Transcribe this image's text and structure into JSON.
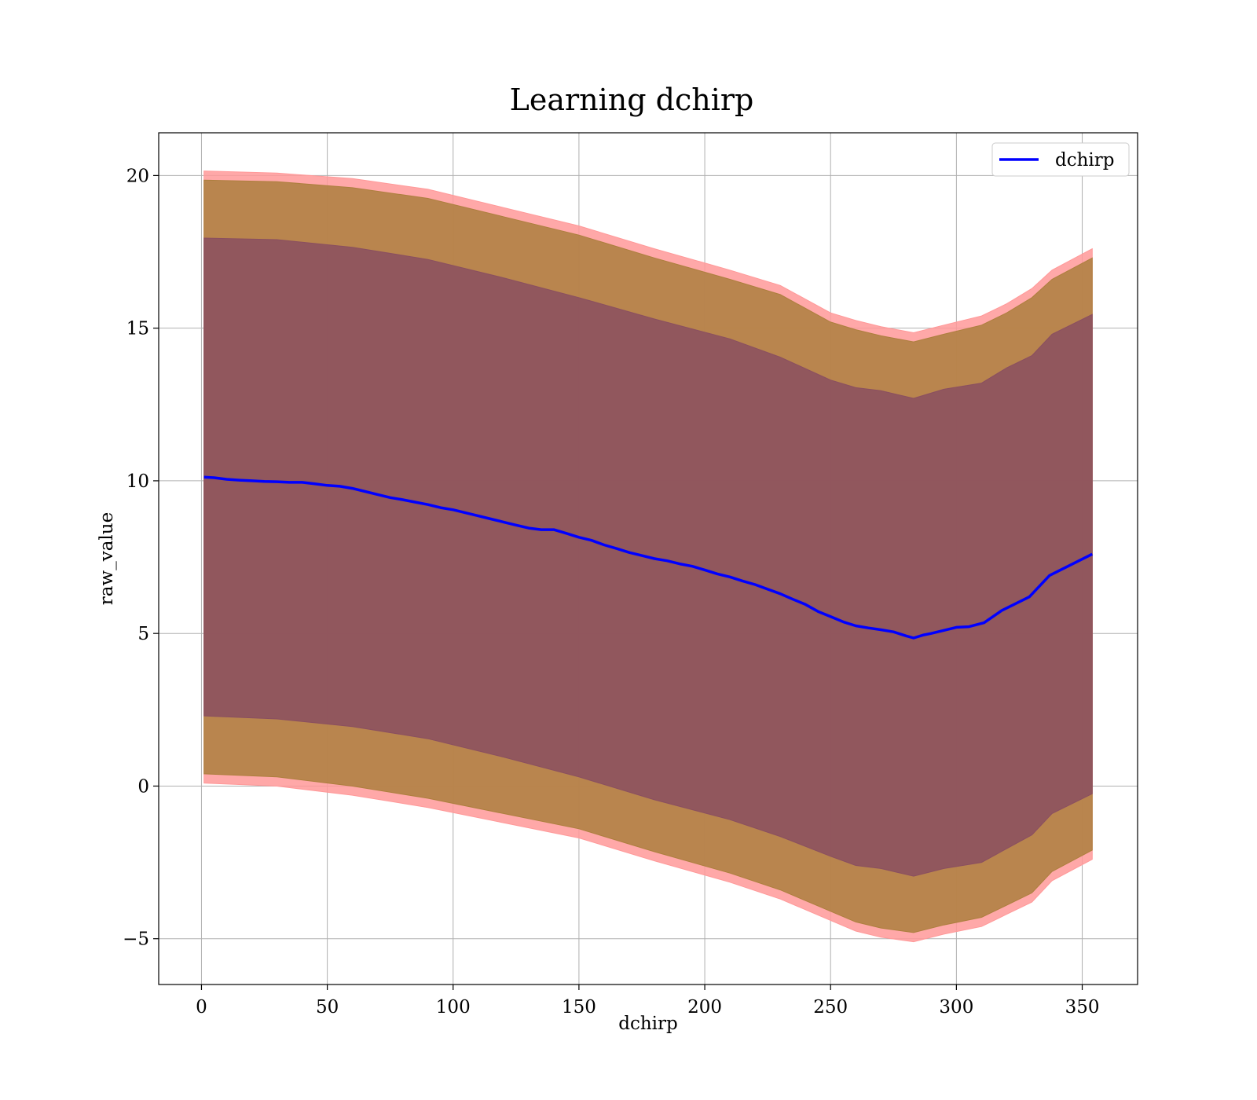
{
  "chart_data": {
    "type": "line",
    "title": "Learning dchirp",
    "xlabel": "dchirp",
    "ylabel": "raw_value",
    "xlim": [
      -17,
      372
    ],
    "ylim": [
      -6.5,
      21.4
    ],
    "x_ticks": [
      0,
      50,
      100,
      150,
      200,
      250,
      300,
      350
    ],
    "y_ticks": [
      -5,
      0,
      5,
      10,
      15,
      20
    ],
    "x_tick_labels": [
      "0",
      "50",
      "100",
      "150",
      "200",
      "250",
      "300",
      "350"
    ],
    "y_tick_labels": [
      "−5",
      "0",
      "5",
      "10",
      "15",
      "20"
    ],
    "grid": true,
    "legend_position": "top-right",
    "series": [
      {
        "name": "dchirp",
        "color": "#0000ff",
        "x": [
          1,
          5,
          10,
          15,
          20,
          25,
          30,
          35,
          40,
          45,
          50,
          55,
          60,
          65,
          70,
          75,
          80,
          85,
          90,
          95,
          100,
          105,
          110,
          115,
          120,
          125,
          130,
          135,
          140,
          145,
          150,
          155,
          160,
          165,
          170,
          175,
          180,
          185,
          190,
          195,
          200,
          205,
          210,
          215,
          220,
          225,
          230,
          235,
          240,
          245,
          250,
          255,
          260,
          265,
          270,
          275,
          280,
          283,
          287,
          290,
          295,
          300,
          305,
          311,
          318,
          329,
          337,
          354
        ],
        "values": [
          10.12,
          10.1,
          10.05,
          10.02,
          10.0,
          9.98,
          9.97,
          9.95,
          9.95,
          9.9,
          9.85,
          9.82,
          9.75,
          9.65,
          9.55,
          9.45,
          9.38,
          9.3,
          9.22,
          9.12,
          9.05,
          8.95,
          8.85,
          8.75,
          8.65,
          8.55,
          8.45,
          8.4,
          8.4,
          8.28,
          8.15,
          8.05,
          7.9,
          7.78,
          7.65,
          7.55,
          7.45,
          7.38,
          7.28,
          7.2,
          7.08,
          6.95,
          6.85,
          6.72,
          6.6,
          6.45,
          6.3,
          6.12,
          5.95,
          5.72,
          5.55,
          5.38,
          5.25,
          5.18,
          5.12,
          5.05,
          4.92,
          4.85,
          4.95,
          5.0,
          5.1,
          5.2,
          5.22,
          5.35,
          5.75,
          6.2,
          6.9,
          7.6
        ]
      }
    ],
    "bands": [
      {
        "color": "#ff9999",
        "x": [
          1,
          30,
          60,
          90,
          120,
          150,
          180,
          210,
          230,
          250,
          260,
          270,
          283,
          295,
          310,
          320,
          330,
          338,
          354
        ],
        "upper": [
          20.15,
          20.08,
          19.9,
          19.55,
          18.95,
          18.35,
          17.6,
          16.9,
          16.4,
          15.5,
          15.25,
          15.05,
          14.85,
          15.1,
          15.4,
          15.8,
          16.3,
          16.9,
          17.6
        ],
        "lower": [
          0.1,
          0.0,
          -0.3,
          -0.7,
          -1.2,
          -1.7,
          -2.45,
          -3.15,
          -3.7,
          -4.4,
          -4.75,
          -4.95,
          -5.1,
          -4.85,
          -4.6,
          -4.2,
          -3.8,
          -3.1,
          -2.4
        ]
      },
      {
        "color": "#ad7f3e",
        "x": [
          1,
          30,
          60,
          90,
          120,
          150,
          180,
          210,
          230,
          250,
          260,
          270,
          283,
          295,
          310,
          320,
          330,
          338,
          354
        ],
        "upper": [
          19.85,
          19.8,
          19.6,
          19.25,
          18.65,
          18.05,
          17.3,
          16.6,
          16.1,
          15.2,
          14.95,
          14.75,
          14.55,
          14.8,
          15.1,
          15.5,
          16.0,
          16.6,
          17.3
        ],
        "lower": [
          0.4,
          0.3,
          0.0,
          -0.4,
          -0.9,
          -1.4,
          -2.15,
          -2.85,
          -3.4,
          -4.1,
          -4.45,
          -4.65,
          -4.8,
          -4.55,
          -4.3,
          -3.9,
          -3.5,
          -2.8,
          -2.1
        ]
      },
      {
        "color": "#8a4f60",
        "x": [
          1,
          30,
          60,
          90,
          120,
          150,
          180,
          210,
          230,
          250,
          260,
          270,
          283,
          295,
          310,
          320,
          330,
          338,
          354
        ],
        "upper": [
          17.95,
          17.9,
          17.65,
          17.25,
          16.65,
          16.0,
          15.3,
          14.65,
          14.05,
          13.3,
          13.05,
          12.95,
          12.7,
          13.0,
          13.2,
          13.7,
          14.1,
          14.8,
          15.45
        ],
        "lower": [
          2.3,
          2.2,
          1.95,
          1.55,
          0.95,
          0.3,
          -0.45,
          -1.1,
          -1.65,
          -2.3,
          -2.6,
          -2.7,
          -2.95,
          -2.7,
          -2.5,
          -2.05,
          -1.6,
          -0.9,
          -0.25
        ]
      }
    ]
  }
}
